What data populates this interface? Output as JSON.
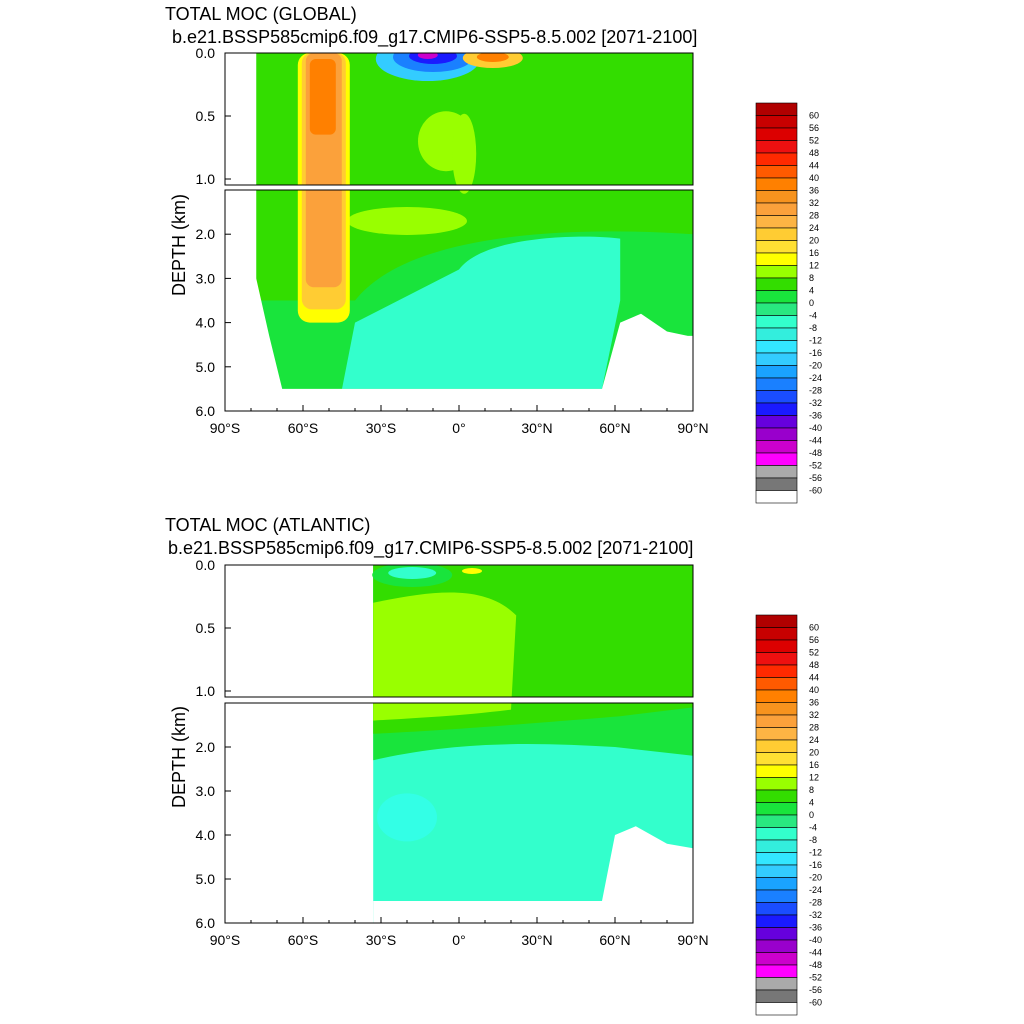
{
  "chart_data": [
    {
      "type": "heatmap",
      "title": "TOTAL MOC (GLOBAL)",
      "subtitle": "b.e21.BSSP585cmip6.f09_g17.CMIP6-SSP5-8.5.002 [2071-2100]",
      "ylabel": "DEPTH (km)",
      "xlim": [
        -90,
        90
      ],
      "ylim": [
        6.0,
        0.0
      ],
      "x_ticks": [
        "90°S",
        "60°S",
        "30°S",
        "0°",
        "30°N",
        "60°N",
        "90°N"
      ],
      "y_ticks_upper": [
        "0.0",
        "0.5",
        "1.0"
      ],
      "y_ticks_lower": [
        "2.0",
        "3.0",
        "4.0",
        "5.0",
        "6.0"
      ],
      "features": [
        {
          "lat_range": [
            -62,
            -42
          ],
          "depth_range": [
            0.0,
            4.0
          ],
          "value": 28
        },
        {
          "lat_range": [
            -25,
            0
          ],
          "depth_range": [
            0.0,
            0.15
          ],
          "value": -48
        },
        {
          "lat_range": [
            3,
            25
          ],
          "depth_range": [
            0.0,
            0.1
          ],
          "value": 24
        },
        {
          "lat_range": [
            0,
            62
          ],
          "depth_range": [
            2.0,
            5.5
          ],
          "value": -2
        }
      ]
    },
    {
      "type": "heatmap",
      "title": "TOTAL MOC (ATLANTIC)",
      "subtitle": "b.e21.BSSP585cmip6.f09_g17.CMIP6-SSP5-8.5.002 [2071-2100]",
      "ylabel": "DEPTH (km)",
      "xlim": [
        -90,
        90
      ],
      "ylim": [
        6.0,
        0.0
      ],
      "x_ticks": [
        "90°S",
        "60°S",
        "30°S",
        "0°",
        "30°N",
        "60°N",
        "90°N"
      ],
      "y_ticks_upper": [
        "0.0",
        "0.5",
        "1.0"
      ],
      "y_ticks_lower": [
        "2.0",
        "3.0",
        "4.0",
        "5.0",
        "6.0"
      ],
      "features": [
        {
          "lat_range": [
            -33,
            50
          ],
          "depth_range": [
            0.2,
            1.2
          ],
          "value": 10
        },
        {
          "lat_range": [
            -30,
            60
          ],
          "depth_range": [
            1.8,
            5.5
          ],
          "value": -2
        }
      ]
    }
  ],
  "colorbar": {
    "labels": [
      "60",
      "56",
      "52",
      "48",
      "44",
      "40",
      "36",
      "32",
      "28",
      "24",
      "20",
      "16",
      "12",
      "8",
      "4",
      "0",
      "-4",
      "-8",
      "-12",
      "-16",
      "-20",
      "-24",
      "-28",
      "-32",
      "-36",
      "-40",
      "-44",
      "-48",
      "-52",
      "-56",
      "-60"
    ],
    "colors": [
      "#b00000",
      "#c80000",
      "#dc0000",
      "#ee1010",
      "#ff2a00",
      "#ff5a00",
      "#ff8000",
      "#f7931e",
      "#fba13b",
      "#fdb444",
      "#ffcc33",
      "#ffe033",
      "#ffff00",
      "#99ff00",
      "#33dd00",
      "#19e43c",
      "#29e880",
      "#33ffcc",
      "#33eedd",
      "#33e6ff",
      "#33ccff",
      "#1aa3ff",
      "#1a80ff",
      "#1a4dff",
      "#1a1aff",
      "#6600dd",
      "#9900cc",
      "#cc00cc",
      "#ff00ff",
      "#aaaaaa",
      "#777777",
      "#ffffff"
    ]
  }
}
